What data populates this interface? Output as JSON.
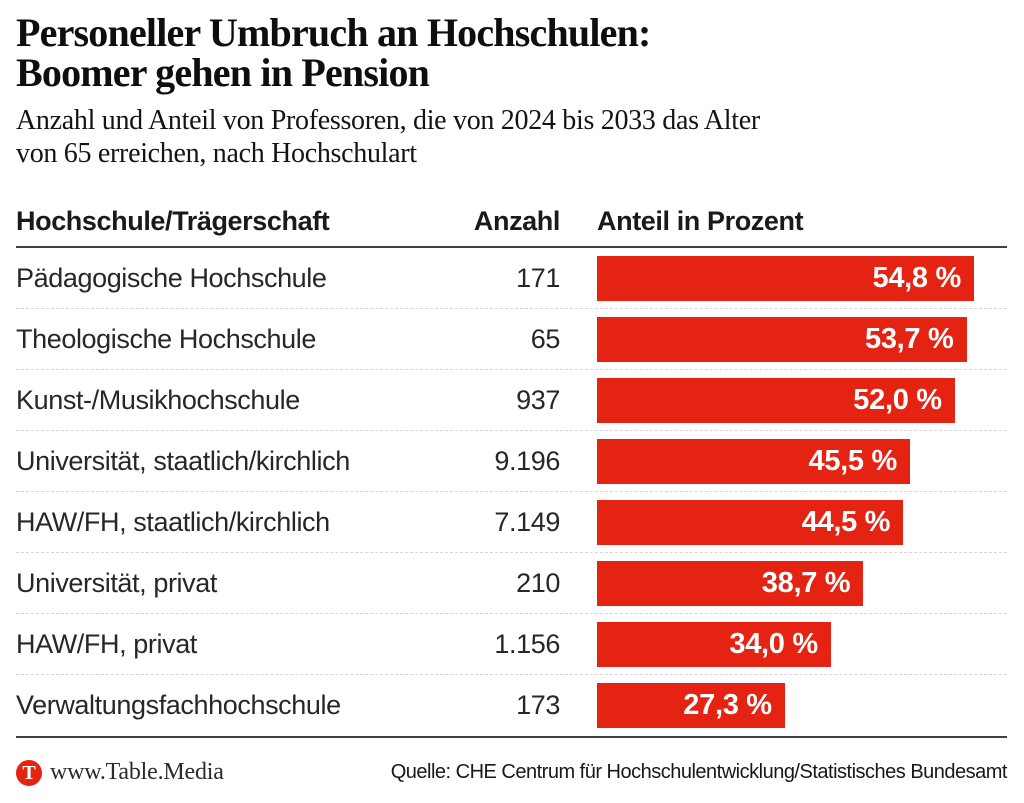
{
  "colors": {
    "bar_red": "#e42313",
    "rule_dark": "#404040",
    "separator": "#d6d6d6",
    "bar_text": "#ffffff"
  },
  "header": {
    "title_line1": "Personeller Umbruch an Hochschulen:",
    "title_line2": "Boomer gehen in Pension",
    "subtitle_line1": "Anzahl und Anteil von Professoren, die von 2024 bis 2033 das Alter",
    "subtitle_line2": "von 65 erreichen, nach Hochschulart"
  },
  "table": {
    "columns": {
      "label": "Hochschule/Trägerschaft",
      "anzahl": "Anzahl",
      "anteil": "Anteil in Prozent"
    },
    "rows": [
      {
        "label": "Pädagogische Hochschule",
        "anzahl": "171",
        "anteil_label": "54,8 %",
        "anteil_value": 54.8
      },
      {
        "label": "Theologische Hochschule",
        "anzahl": "65",
        "anteil_label": "53,7 %",
        "anteil_value": 53.7
      },
      {
        "label": "Kunst-/Musikhochschule",
        "anzahl": "937",
        "anteil_label": "52,0 %",
        "anteil_value": 52.0
      },
      {
        "label": "Universität, staatlich/kirchlich",
        "anzahl": "9.196",
        "anteil_label": "45,5 %",
        "anteil_value": 45.5
      },
      {
        "label": "HAW/FH, staatlich/kirchlich",
        "anzahl": "7.149",
        "anteil_label": "44,5 %",
        "anteil_value": 44.5
      },
      {
        "label": "Universität, privat",
        "anzahl": "210",
        "anteil_label": "38,7 %",
        "anteil_value": 38.7
      },
      {
        "label": "HAW/FH, privat",
        "anzahl": "1.156",
        "anteil_label": "34,0 %",
        "anteil_value": 34.0
      },
      {
        "label": "Verwaltungsfachhochschule",
        "anzahl": "173",
        "anteil_label": "27,3 %",
        "anteil_value": 27.3
      }
    ]
  },
  "footer": {
    "logo_letter": "T",
    "site": "www.Table.Media",
    "source": "Quelle: CHE Centrum für Hochschulentwicklung/Statistisches Bundesamt"
  },
  "chart_data": {
    "type": "bar",
    "orientation": "horizontal",
    "title": "Personeller Umbruch an Hochschulen: Boomer gehen in Pension",
    "subtitle": "Anzahl und Anteil von Professoren, die von 2024 bis 2033 das Alter von 65 erreichen, nach Hochschulart",
    "categories": [
      "Pädagogische Hochschule",
      "Theologische Hochschule",
      "Kunst-/Musikhochschule",
      "Universität, staatlich/kirchlich",
      "HAW/FH, staatlich/kirchlich",
      "Universität, privat",
      "HAW/FH, privat",
      "Verwaltungsfachhochschule"
    ],
    "series": [
      {
        "name": "Anzahl",
        "values": [
          171,
          65,
          937,
          9196,
          7149,
          210,
          1156,
          173
        ]
      },
      {
        "name": "Anteil in Prozent",
        "values": [
          54.8,
          53.7,
          52.0,
          45.5,
          44.5,
          38.7,
          34.0,
          27.3
        ]
      }
    ],
    "value_suffix": " %",
    "decimal_separator": ",",
    "bar_color": "#e42313",
    "data_labels": "inside-end",
    "xlim": [
      0,
      58.8
    ],
    "grid": false,
    "legend": false,
    "source": "Quelle: CHE Centrum für Hochschulentwicklung/Statistisches Bundesamt"
  }
}
